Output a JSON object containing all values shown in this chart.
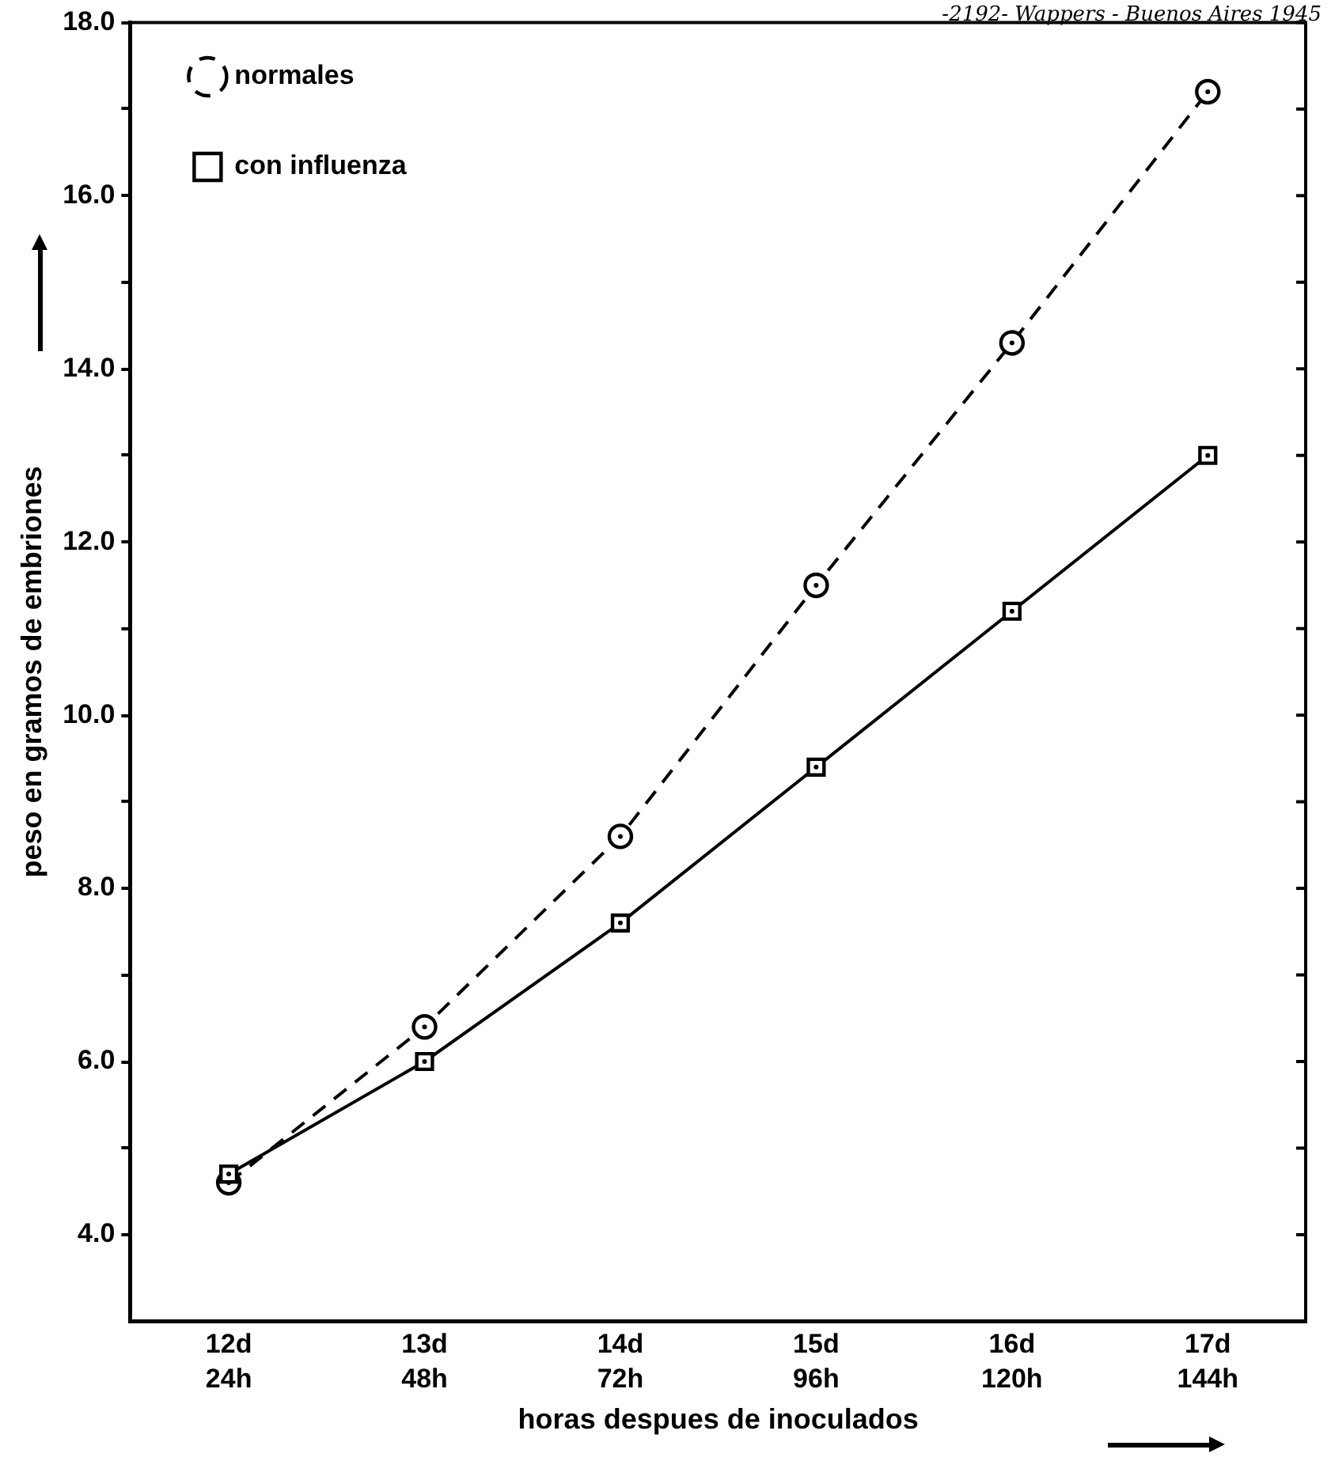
{
  "chart_data": {
    "type": "line",
    "annotations": [
      "-2192- Wappers - Buenos Aires 1945"
    ],
    "xlabel": "horas despues de inoculados",
    "ylabel": "peso en gramos de embriones",
    "categories": [
      "12d\n24h",
      "13d\n48h",
      "14d\n72h",
      "15d\n96h",
      "16d\n120h",
      "17d\n144h"
    ],
    "series": [
      {
        "name": "normales",
        "color": "#000000",
        "marker": "circle",
        "line_style": "dashed",
        "values": [
          4.6,
          6.4,
          8.6,
          11.5,
          14.3,
          17.2
        ]
      },
      {
        "name": "con influenza",
        "color": "#000000",
        "marker": "square",
        "line_style": "solid",
        "values": [
          4.7,
          6.0,
          7.6,
          9.4,
          11.2,
          13.0
        ]
      }
    ],
    "ylim": [
      3.0,
      18.0
    ],
    "yticks": [
      {
        "value": 4,
        "label": "4.0"
      },
      {
        "value": 5,
        "label": null
      },
      {
        "value": 6,
        "label": "6.0"
      },
      {
        "value": 7,
        "label": null
      },
      {
        "value": 8,
        "label": "8.0"
      },
      {
        "value": 9,
        "label": null
      },
      {
        "value": 10,
        "label": "10.0"
      },
      {
        "value": 11,
        "label": null
      },
      {
        "value": 12,
        "label": "12.0"
      },
      {
        "value": 13,
        "label": null
      },
      {
        "value": 14,
        "label": "14.0"
      },
      {
        "value": 15,
        "label": null
      },
      {
        "value": 16,
        "label": "16.0"
      },
      {
        "value": 17,
        "label": null
      },
      {
        "value": 18,
        "label": "18.0"
      }
    ],
    "legend": "top left",
    "grid": false
  }
}
